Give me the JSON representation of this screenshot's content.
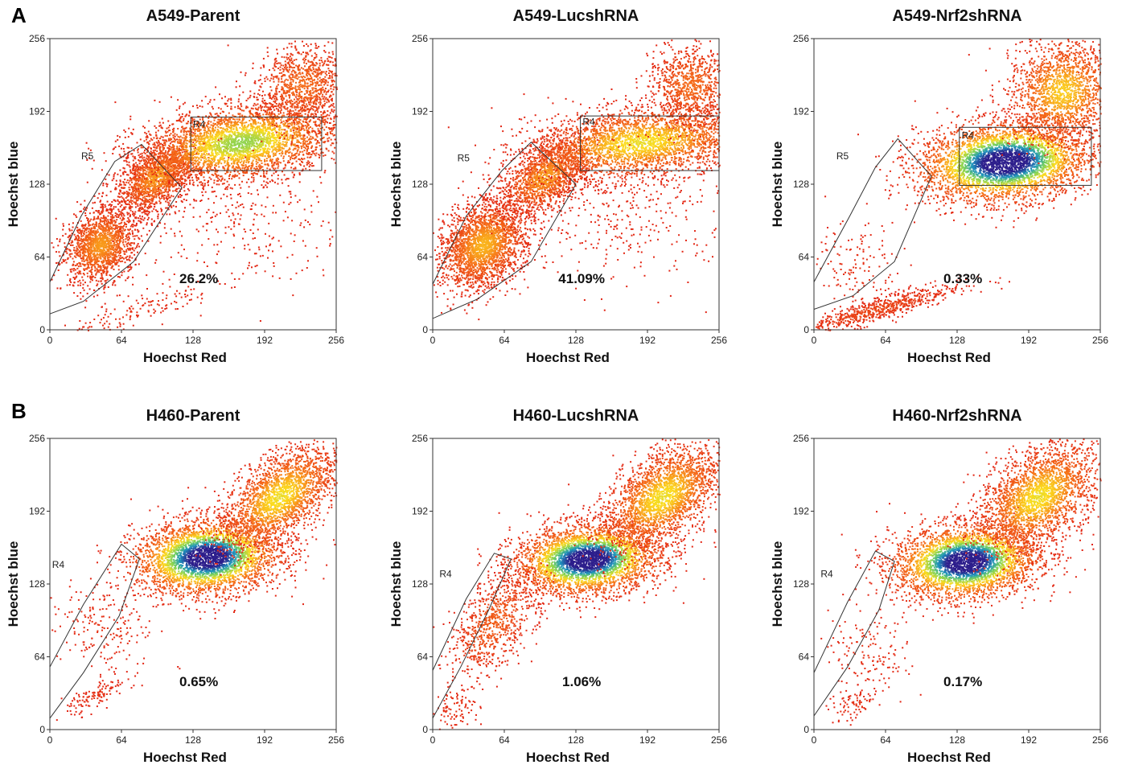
{
  "figure": {
    "panel_letters": [
      "A",
      "B"
    ]
  },
  "chart_data": [
    {
      "type": "scatter",
      "row": "A",
      "title": "A549-Parent",
      "xlabel": "Hoechst Red",
      "ylabel": "Hoechst blue",
      "xlim": [
        0,
        256
      ],
      "ylim": [
        0,
        256
      ],
      "xticks": [
        "0",
        "64",
        "128",
        "192",
        "256"
      ],
      "yticks": [
        "0",
        "64",
        "128",
        "192",
        "256"
      ],
      "percent_label": "26.2%",
      "gates": [
        {
          "name": "R5",
          "label_at": [
            28,
            150
          ],
          "polygon": [
            [
              0,
              42
            ],
            [
              28,
              100
            ],
            [
              58,
              148
            ],
            [
              82,
              163
            ],
            [
              118,
              125
            ],
            [
              75,
              60
            ],
            [
              30,
              25
            ],
            [
              0,
              14
            ]
          ]
        },
        {
          "name": "R4",
          "label_at": [
            128,
            178
          ],
          "rect": [
            [
              126,
              140
            ],
            [
              243,
              187
            ]
          ]
        }
      ],
      "populations": [
        {
          "cx": 45,
          "cy": 75,
          "sx": 18,
          "sy": 14,
          "angle": 50,
          "n": 1600,
          "peak": 0.35
        },
        {
          "cx": 95,
          "cy": 135,
          "sx": 20,
          "sy": 12,
          "angle": 40,
          "n": 1600,
          "peak": 0.35
        },
        {
          "cx": 170,
          "cy": 165,
          "sx": 45,
          "sy": 16,
          "angle": 8,
          "n": 3500,
          "peak": 0.6
        },
        {
          "cx": 225,
          "cy": 215,
          "sx": 20,
          "sy": 18,
          "angle": 30,
          "n": 1000,
          "peak": 0.25
        },
        {
          "cx": 70,
          "cy": 15,
          "sx": 40,
          "sy": 6,
          "angle": 18,
          "n": 150,
          "peak": 0.05
        },
        {
          "cx": 170,
          "cy": 90,
          "sx": 50,
          "sy": 30,
          "angle": 0,
          "n": 300,
          "peak": 0.02
        }
      ]
    },
    {
      "type": "scatter",
      "row": "A",
      "title": "A549-LucshRNA",
      "xlabel": "Hoechst Red",
      "ylabel": "Hoechst blue",
      "xlim": [
        0,
        256
      ],
      "ylim": [
        0,
        256
      ],
      "xticks": [
        "0",
        "64",
        "128",
        "192",
        "256"
      ],
      "yticks": [
        "0",
        "64",
        "128",
        "192",
        "256"
      ],
      "percent_label": "41.09%",
      "gates": [
        {
          "name": "R5",
          "label_at": [
            22,
            148
          ],
          "polygon": [
            [
              0,
              40
            ],
            [
              30,
              100
            ],
            [
              62,
              140
            ],
            [
              88,
              165
            ],
            [
              128,
              128
            ],
            [
              88,
              60
            ],
            [
              40,
              27
            ],
            [
              0,
              10
            ]
          ]
        },
        {
          "name": "R4",
          "label_at": [
            134,
            180
          ],
          "rect": [
            [
              132,
              140
            ],
            [
              256,
              188
            ]
          ]
        }
      ],
      "populations": [
        {
          "cx": 45,
          "cy": 75,
          "sx": 22,
          "sy": 16,
          "angle": 45,
          "n": 2400,
          "peak": 0.4
        },
        {
          "cx": 100,
          "cy": 135,
          "sx": 22,
          "sy": 13,
          "angle": 35,
          "n": 1500,
          "peak": 0.35
        },
        {
          "cx": 185,
          "cy": 165,
          "sx": 50,
          "sy": 15,
          "angle": 6,
          "n": 3000,
          "peak": 0.5
        },
        {
          "cx": 230,
          "cy": 215,
          "sx": 18,
          "sy": 18,
          "angle": 30,
          "n": 900,
          "peak": 0.25
        },
        {
          "cx": 170,
          "cy": 100,
          "sx": 50,
          "sy": 30,
          "angle": 0,
          "n": 350,
          "peak": 0.02
        }
      ]
    },
    {
      "type": "scatter",
      "row": "A",
      "title": "A549-Nrf2shRNA",
      "xlabel": "Hoechst Red",
      "ylabel": "Hoechst blue",
      "xlim": [
        0,
        256
      ],
      "ylim": [
        0,
        256
      ],
      "xticks": [
        "0",
        "64",
        "128",
        "192",
        "256"
      ],
      "yticks": [
        "0",
        "64",
        "128",
        "192",
        "256"
      ],
      "percent_label": "0.33%",
      "gates": [
        {
          "name": "R5",
          "label_at": [
            20,
            150
          ],
          "polygon": [
            [
              0,
              42
            ],
            [
              32,
              100
            ],
            [
              55,
              143
            ],
            [
              75,
              168
            ],
            [
              105,
              135
            ],
            [
              72,
              60
            ],
            [
              35,
              30
            ],
            [
              0,
              18
            ]
          ]
        },
        {
          "name": "R4",
          "label_at": [
            132,
            168
          ],
          "rect": [
            [
              130,
              127
            ],
            [
              248,
              178
            ]
          ]
        }
      ],
      "populations": [
        {
          "cx": 170,
          "cy": 148,
          "sx": 38,
          "sy": 17,
          "angle": 5,
          "n": 4000,
          "peak": 1.0
        },
        {
          "cx": 222,
          "cy": 210,
          "sx": 24,
          "sy": 22,
          "angle": 30,
          "n": 1800,
          "peak": 0.45
        },
        {
          "cx": 55,
          "cy": 18,
          "sx": 40,
          "sy": 5,
          "angle": 15,
          "n": 700,
          "peak": 0.12
        },
        {
          "cx": 35,
          "cy": 55,
          "sx": 20,
          "sy": 22,
          "angle": 50,
          "n": 150,
          "peak": 0.05
        }
      ]
    },
    {
      "type": "scatter",
      "row": "B",
      "title": "H460-Parent",
      "xlabel": "Hoechst Red",
      "ylabel": "Hoechst blue",
      "xlim": [
        0,
        256
      ],
      "ylim": [
        0,
        256
      ],
      "xticks": [
        "0",
        "64",
        "128",
        "192",
        "256"
      ],
      "yticks": [
        "0",
        "64",
        "128",
        "192",
        "256"
      ],
      "percent_label": "0.65%",
      "gates": [
        {
          "name": "R4",
          "label_at": [
            2,
            142
          ],
          "polygon": [
            [
              0,
              55
            ],
            [
              30,
              110
            ],
            [
              64,
              163
            ],
            [
              80,
              150
            ],
            [
              62,
              100
            ],
            [
              30,
              50
            ],
            [
              0,
              10
            ]
          ]
        }
      ],
      "populations": [
        {
          "cx": 140,
          "cy": 152,
          "sx": 32,
          "sy": 16,
          "angle": 5,
          "n": 3500,
          "peak": 1.0
        },
        {
          "cx": 205,
          "cy": 205,
          "sx": 30,
          "sy": 16,
          "angle": 38,
          "n": 2200,
          "peak": 0.5
        },
        {
          "cx": 45,
          "cy": 90,
          "sx": 18,
          "sy": 25,
          "angle": 55,
          "n": 200,
          "peak": 0.05
        },
        {
          "cx": 40,
          "cy": 30,
          "sx": 14,
          "sy": 5,
          "angle": 25,
          "n": 120,
          "peak": 0.05
        }
      ]
    },
    {
      "type": "scatter",
      "row": "B",
      "title": "H460-LucshRNA",
      "xlabel": "Hoechst Red",
      "ylabel": "Hoechst blue",
      "xlim": [
        0,
        256
      ],
      "ylim": [
        0,
        256
      ],
      "xticks": [
        "0",
        "64",
        "128",
        "192",
        "256"
      ],
      "yticks": [
        "0",
        "64",
        "128",
        "192",
        "256"
      ],
      "percent_label": "1.06%",
      "gates": [
        {
          "name": "R4",
          "label_at": [
            6,
            134
          ],
          "polygon": [
            [
              0,
              52
            ],
            [
              30,
              115
            ],
            [
              55,
              155
            ],
            [
              70,
              150
            ],
            [
              50,
              105
            ],
            [
              25,
              55
            ],
            [
              0,
              10
            ]
          ]
        }
      ],
      "populations": [
        {
          "cx": 138,
          "cy": 150,
          "sx": 32,
          "sy": 15,
          "angle": 5,
          "n": 3500,
          "peak": 1.0
        },
        {
          "cx": 205,
          "cy": 205,
          "sx": 30,
          "sy": 17,
          "angle": 38,
          "n": 2400,
          "peak": 0.5
        },
        {
          "cx": 55,
          "cy": 95,
          "sx": 28,
          "sy": 14,
          "angle": 55,
          "n": 800,
          "peak": 0.2
        },
        {
          "cx": 20,
          "cy": 20,
          "sx": 14,
          "sy": 10,
          "angle": 45,
          "n": 100,
          "peak": 0.05
        }
      ]
    },
    {
      "type": "scatter",
      "row": "B",
      "title": "H460-Nrf2shRNA",
      "xlabel": "Hoechst Red",
      "ylabel": "Hoechst blue",
      "xlim": [
        0,
        256
      ],
      "ylim": [
        0,
        256
      ],
      "xticks": [
        "0",
        "64",
        "128",
        "192",
        "256"
      ],
      "yticks": [
        "0",
        "64",
        "128",
        "192",
        "256"
      ],
      "percent_label": "0.17%",
      "gates": [
        {
          "name": "R4",
          "label_at": [
            6,
            134
          ],
          "polygon": [
            [
              0,
              50
            ],
            [
              30,
              112
            ],
            [
              55,
              157
            ],
            [
              72,
              148
            ],
            [
              58,
              105
            ],
            [
              30,
              55
            ],
            [
              0,
              12
            ]
          ]
        }
      ],
      "populations": [
        {
          "cx": 135,
          "cy": 148,
          "sx": 32,
          "sy": 16,
          "angle": 5,
          "n": 3500,
          "peak": 1.0
        },
        {
          "cx": 200,
          "cy": 205,
          "sx": 30,
          "sy": 18,
          "angle": 38,
          "n": 2400,
          "peak": 0.5
        },
        {
          "cx": 50,
          "cy": 70,
          "sx": 18,
          "sy": 20,
          "angle": 55,
          "n": 150,
          "peak": 0.05
        },
        {
          "cx": 35,
          "cy": 22,
          "sx": 12,
          "sy": 6,
          "angle": 25,
          "n": 80,
          "peak": 0.05
        }
      ]
    }
  ]
}
